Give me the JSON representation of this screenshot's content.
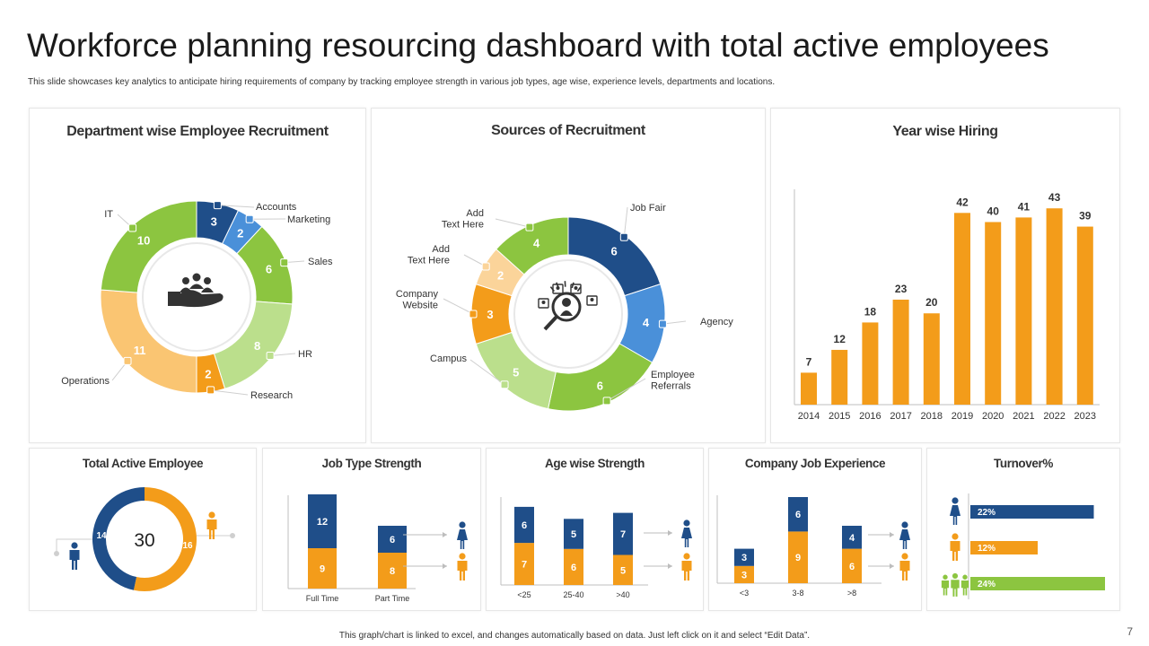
{
  "header": {
    "title": "Workforce planning resourcing dashboard with total active employees",
    "subtitle": "This slide showcases key analytics to anticipate hiring requirements of company by tracking employee strength in various job types, age wise, experience levels, departments and locations."
  },
  "footer": {
    "note": "This graph/chart is linked to excel, and changes automatically based on data. Just left click on it and select “Edit Data”.",
    "page": "7"
  },
  "colors": {
    "navy": "#1f4e89",
    "blue": "#4a90d9",
    "green": "#8cc540",
    "light_green": "#bbdf8c",
    "orange": "#f39c1a",
    "light_orange": "#fac572",
    "pale_orange": "#fbd49a"
  },
  "icons": {
    "dept_center": "hand-holding-people-icon",
    "sources_center": "magnifier-lightbulb-people-icon",
    "male": "male-person-icon",
    "female": "female-person-icon",
    "group": "group-icon"
  },
  "chart_data": [
    {
      "id": "dept",
      "type": "pie",
      "title": "Department wise Employee Recruitment",
      "categories": [
        "Accounts",
        "Marketing",
        "Sales",
        "HR",
        "Research",
        "Operations",
        "IT"
      ],
      "values": [
        3,
        2,
        6,
        8,
        2,
        11,
        10
      ],
      "colors": [
        "#1f4e89",
        "#4a90d9",
        "#8cc540",
        "#bbdf8c",
        "#f39c1a",
        "#fac572",
        "#8cc540"
      ]
    },
    {
      "id": "sources",
      "type": "pie",
      "title": "Sources of Recruitment",
      "categories": [
        "Job Fair",
        "Agency",
        "Employee Referrals",
        "Campus",
        "Company Website",
        "Add Text Here",
        "Add Text Here"
      ],
      "values": [
        6,
        4,
        6,
        5,
        3,
        2,
        4
      ],
      "colors": [
        "#1f4e89",
        "#4a90d9",
        "#8cc540",
        "#bbdf8c",
        "#f39c1a",
        "#fbd49a",
        "#8cc540"
      ]
    },
    {
      "id": "year",
      "type": "bar",
      "title": "Year wise Hiring",
      "categories": [
        "2014",
        "2015",
        "2016",
        "2017",
        "2018",
        "2019",
        "2020",
        "2021",
        "2022",
        "2023"
      ],
      "values": [
        7,
        12,
        18,
        23,
        20,
        42,
        40,
        41,
        43,
        39
      ],
      "ylim": [
        0,
        50
      ]
    },
    {
      "id": "total",
      "type": "pie",
      "title": "Total Active Employee",
      "total": 30,
      "categories": [
        "Male",
        "Female"
      ],
      "values": [
        14,
        16
      ],
      "colors": [
        "#1f4e89",
        "#f39c1a"
      ]
    },
    {
      "id": "jobtype",
      "type": "bar",
      "stacked": true,
      "title": "Job Type Strength",
      "categories": [
        "Full Time",
        "Part Time"
      ],
      "series": [
        {
          "name": "Female",
          "values": [
            9,
            8
          ]
        },
        {
          "name": "Male",
          "values": [
            12,
            6
          ]
        }
      ]
    },
    {
      "id": "age",
      "type": "bar",
      "stacked": true,
      "title": "Age wise Strength",
      "categories": [
        "<25",
        "25-40",
        ">40"
      ],
      "series": [
        {
          "name": "Female",
          "values": [
            7,
            6,
            5
          ]
        },
        {
          "name": "Male",
          "values": [
            6,
            5,
            7
          ]
        }
      ]
    },
    {
      "id": "experience",
      "type": "bar",
      "stacked": true,
      "title": "Company Job Experience",
      "categories": [
        "<3",
        "3-8",
        ">8"
      ],
      "series": [
        {
          "name": "Female",
          "values": [
            3,
            9,
            6
          ]
        },
        {
          "name": "Male",
          "values": [
            3,
            6,
            4
          ]
        }
      ]
    },
    {
      "id": "turnover",
      "type": "bar",
      "orientation": "horizontal",
      "title": "Turnover%",
      "categories": [
        "Male",
        "Female",
        "Total"
      ],
      "values": [
        22,
        12,
        24
      ],
      "labels": [
        "22%",
        "12%",
        "24%"
      ]
    }
  ]
}
